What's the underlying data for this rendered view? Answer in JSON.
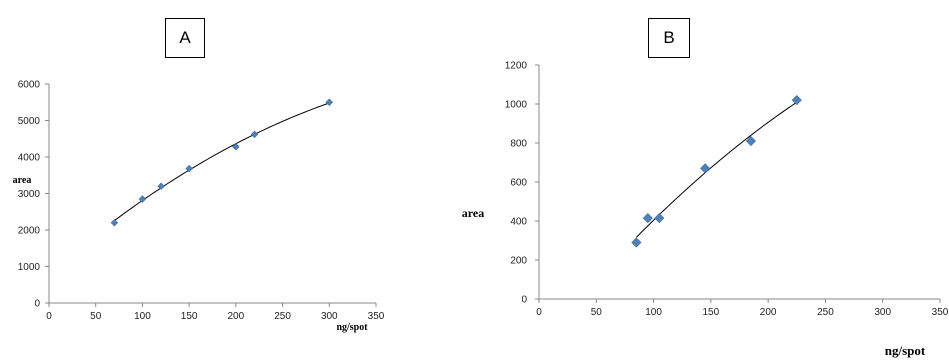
{
  "panels": [
    {
      "label": "A"
    },
    {
      "label": "B"
    }
  ],
  "chart_data": [
    {
      "type": "scatter",
      "panel": "A",
      "xlabel": "ng/spot",
      "ylabel": "area",
      "xlim": [
        0,
        350
      ],
      "ylim": [
        0,
        6000
      ],
      "xticks": [
        0,
        50,
        100,
        150,
        200,
        250,
        300,
        350
      ],
      "yticks": [
        0,
        1000,
        2000,
        3000,
        4000,
        5000,
        6000
      ],
      "x": [
        70,
        100,
        120,
        150,
        200,
        220,
        300
      ],
      "y": [
        2200,
        2850,
        3200,
        3680,
        4280,
        4620,
        5500
      ],
      "trendline": "polynomial",
      "grid": false,
      "marker_color": "#4f81bd"
    },
    {
      "type": "scatter",
      "panel": "B",
      "xlabel": "ng/spot",
      "ylabel": "area",
      "xlim": [
        0,
        350
      ],
      "ylim": [
        0,
        1200
      ],
      "xticks": [
        0,
        50,
        100,
        150,
        200,
        250,
        300,
        350
      ],
      "yticks": [
        0,
        200,
        400,
        600,
        800,
        1000,
        1200
      ],
      "x": [
        85,
        95,
        105,
        145,
        185,
        225
      ],
      "y": [
        290,
        415,
        415,
        670,
        810,
        1020
      ],
      "trendline": "polynomial",
      "grid": false,
      "marker_color": "#4f81bd"
    }
  ]
}
